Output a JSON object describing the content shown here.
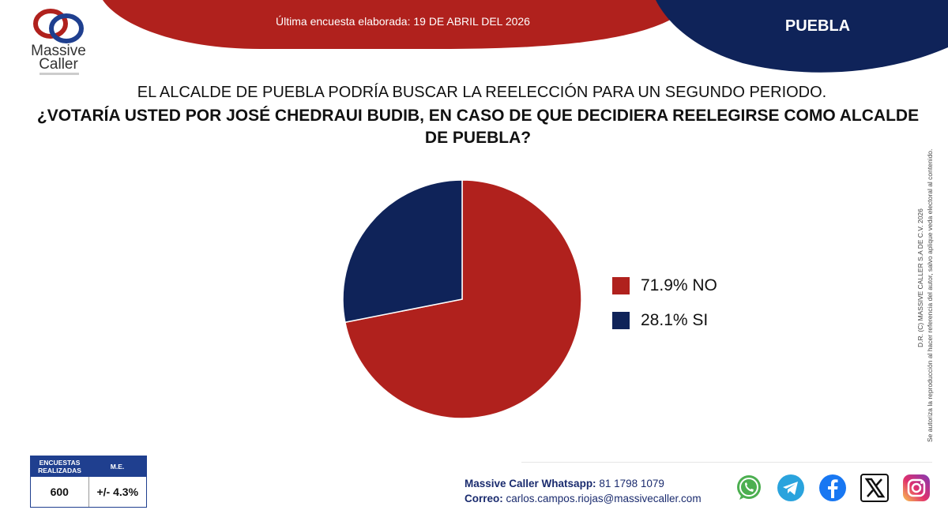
{
  "header": {
    "brand_name": "Massive Caller",
    "survey_date": "Última encuesta elaborada: 19 DE ABRIL DEL 2026",
    "state": "PUEBLA"
  },
  "question": {
    "line1": "EL ALCALDE DE PUEBLA PODRÍA BUSCAR LA REELECCIÓN PARA UN SEGUNDO PERIODO.",
    "line2": "¿VOTARÍA USTED POR JOSÉ CHEDRAUI BUDIB, EN CASO DE QUE DECIDIERA REELEGIRSE COMO ALCALDE DE PUEBLA?"
  },
  "chart_data": {
    "type": "pie",
    "series": [
      {
        "name": "71.9% NO",
        "value": 71.9,
        "color": "#b0211d"
      },
      {
        "name": "28.1% SI",
        "value": 28.1,
        "color": "#0f2359"
      }
    ],
    "legend_position": "right"
  },
  "copyright": {
    "line1": "D.R. (C) MASSIVE CALLER S.A DE C.V. 2026",
    "line2": "Se autoriza la reproducción al hacer referencia del autor, salvo aplique veda electoral al contenido."
  },
  "stats": {
    "col1_header": "ENCUESTAS REALIZADAS",
    "col2_header": "M.E.",
    "col1_value": "600",
    "col2_value": "+/- 4.3%"
  },
  "contact": {
    "whatsapp_label": "Massive Caller Whatsapp:",
    "whatsapp_number": "81 1798 1079",
    "email_label": "Correo:",
    "email": "carlos.campos.riojas@massivecaller.com"
  },
  "social_icons": [
    "whatsapp-icon",
    "telegram-icon",
    "facebook-icon",
    "x-icon",
    "instagram-icon"
  ],
  "colors": {
    "red": "#b0211d",
    "navy": "#0f2359",
    "blue": "#1f3f8f"
  }
}
